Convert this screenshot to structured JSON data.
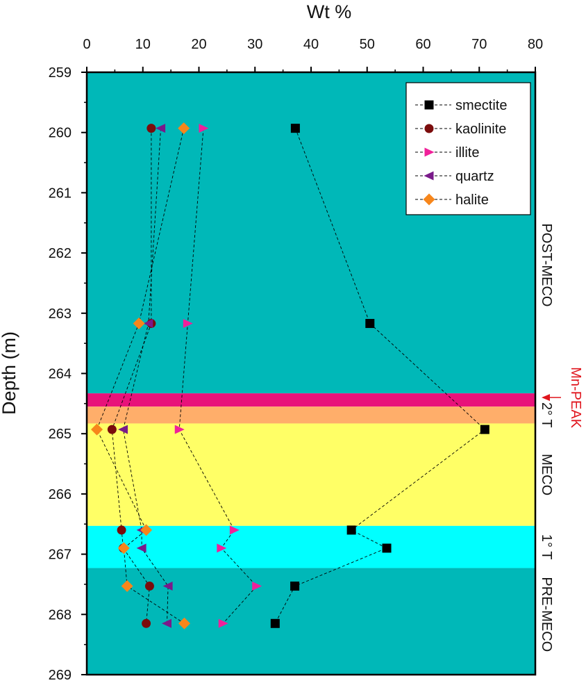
{
  "chart_data": {
    "type": "scatter",
    "xlabel": "Wt %",
    "ylabel": "Depth (m)",
    "xlim": [
      0,
      80
    ],
    "ylim": [
      259,
      269
    ],
    "x_ticks": [
      "0",
      "10",
      "20",
      "30",
      "40",
      "50",
      "60",
      "70",
      "80"
    ],
    "y_ticks": [
      "259",
      "260",
      "261",
      "262",
      "263",
      "264",
      "265",
      "266",
      "267",
      "268",
      "269"
    ],
    "y_inverted": true,
    "lines": "dashed connecting lines per series",
    "legend_position": "top-right",
    "zones": [
      {
        "from": 259.0,
        "to": 264.33,
        "color": "#00b8b8",
        "label": "POST-MECO"
      },
      {
        "from": 264.33,
        "to": 264.55,
        "color": "#e8127a",
        "label": ""
      },
      {
        "from": 264.55,
        "to": 264.83,
        "color": "#ffae6a",
        "label": "2° T"
      },
      {
        "from": 264.83,
        "to": 266.53,
        "color": "#ffff66",
        "label": "MECO"
      },
      {
        "from": 266.53,
        "to": 267.23,
        "color": "#00ffff",
        "label": "1° T"
      },
      {
        "from": 267.23,
        "to": 269.0,
        "color": "#00b8b8",
        "label": "PRE-MECO"
      }
    ],
    "annotation": {
      "text": "Mn-PEAK",
      "depth": 264.4,
      "color": "#e0161e"
    },
    "series": [
      {
        "name": "smectite",
        "marker": "square",
        "color": "#000000",
        "x": [
          37.2,
          50.5,
          71.0,
          47.2,
          53.5,
          37.1,
          33.6
        ],
        "y": [
          259.93,
          263.17,
          264.93,
          266.6,
          266.9,
          267.53,
          268.15
        ]
      },
      {
        "name": "kaolinite",
        "marker": "circle",
        "color": "#7b0c0c",
        "x": [
          11.5,
          11.5,
          4.5,
          6.2,
          6.5,
          11.2,
          10.6
        ],
        "y": [
          259.93,
          263.17,
          264.93,
          266.6,
          266.9,
          267.53,
          268.15
        ]
      },
      {
        "name": "illite",
        "marker": "triangle-right",
        "color": "#f0209a",
        "x": [
          20.8,
          18.0,
          16.5,
          26.3,
          24.0,
          30.3,
          24.3
        ],
        "y": [
          259.93,
          263.17,
          264.93,
          266.6,
          266.9,
          267.53,
          268.15
        ]
      },
      {
        "name": "quartz",
        "marker": "triangle-left",
        "color": "#7a1a8a",
        "x": [
          13.2,
          11.0,
          6.5,
          9.8,
          9.8,
          14.5,
          14.3
        ],
        "y": [
          259.93,
          263.17,
          264.93,
          266.6,
          266.9,
          267.53,
          268.15
        ]
      },
      {
        "name": "halite",
        "marker": "diamond",
        "color": "#f7861b",
        "x": [
          17.3,
          9.3,
          1.8,
          10.6,
          6.6,
          7.2,
          17.4
        ],
        "y": [
          259.93,
          263.17,
          264.93,
          266.6,
          266.9,
          267.53,
          268.15
        ]
      }
    ]
  }
}
